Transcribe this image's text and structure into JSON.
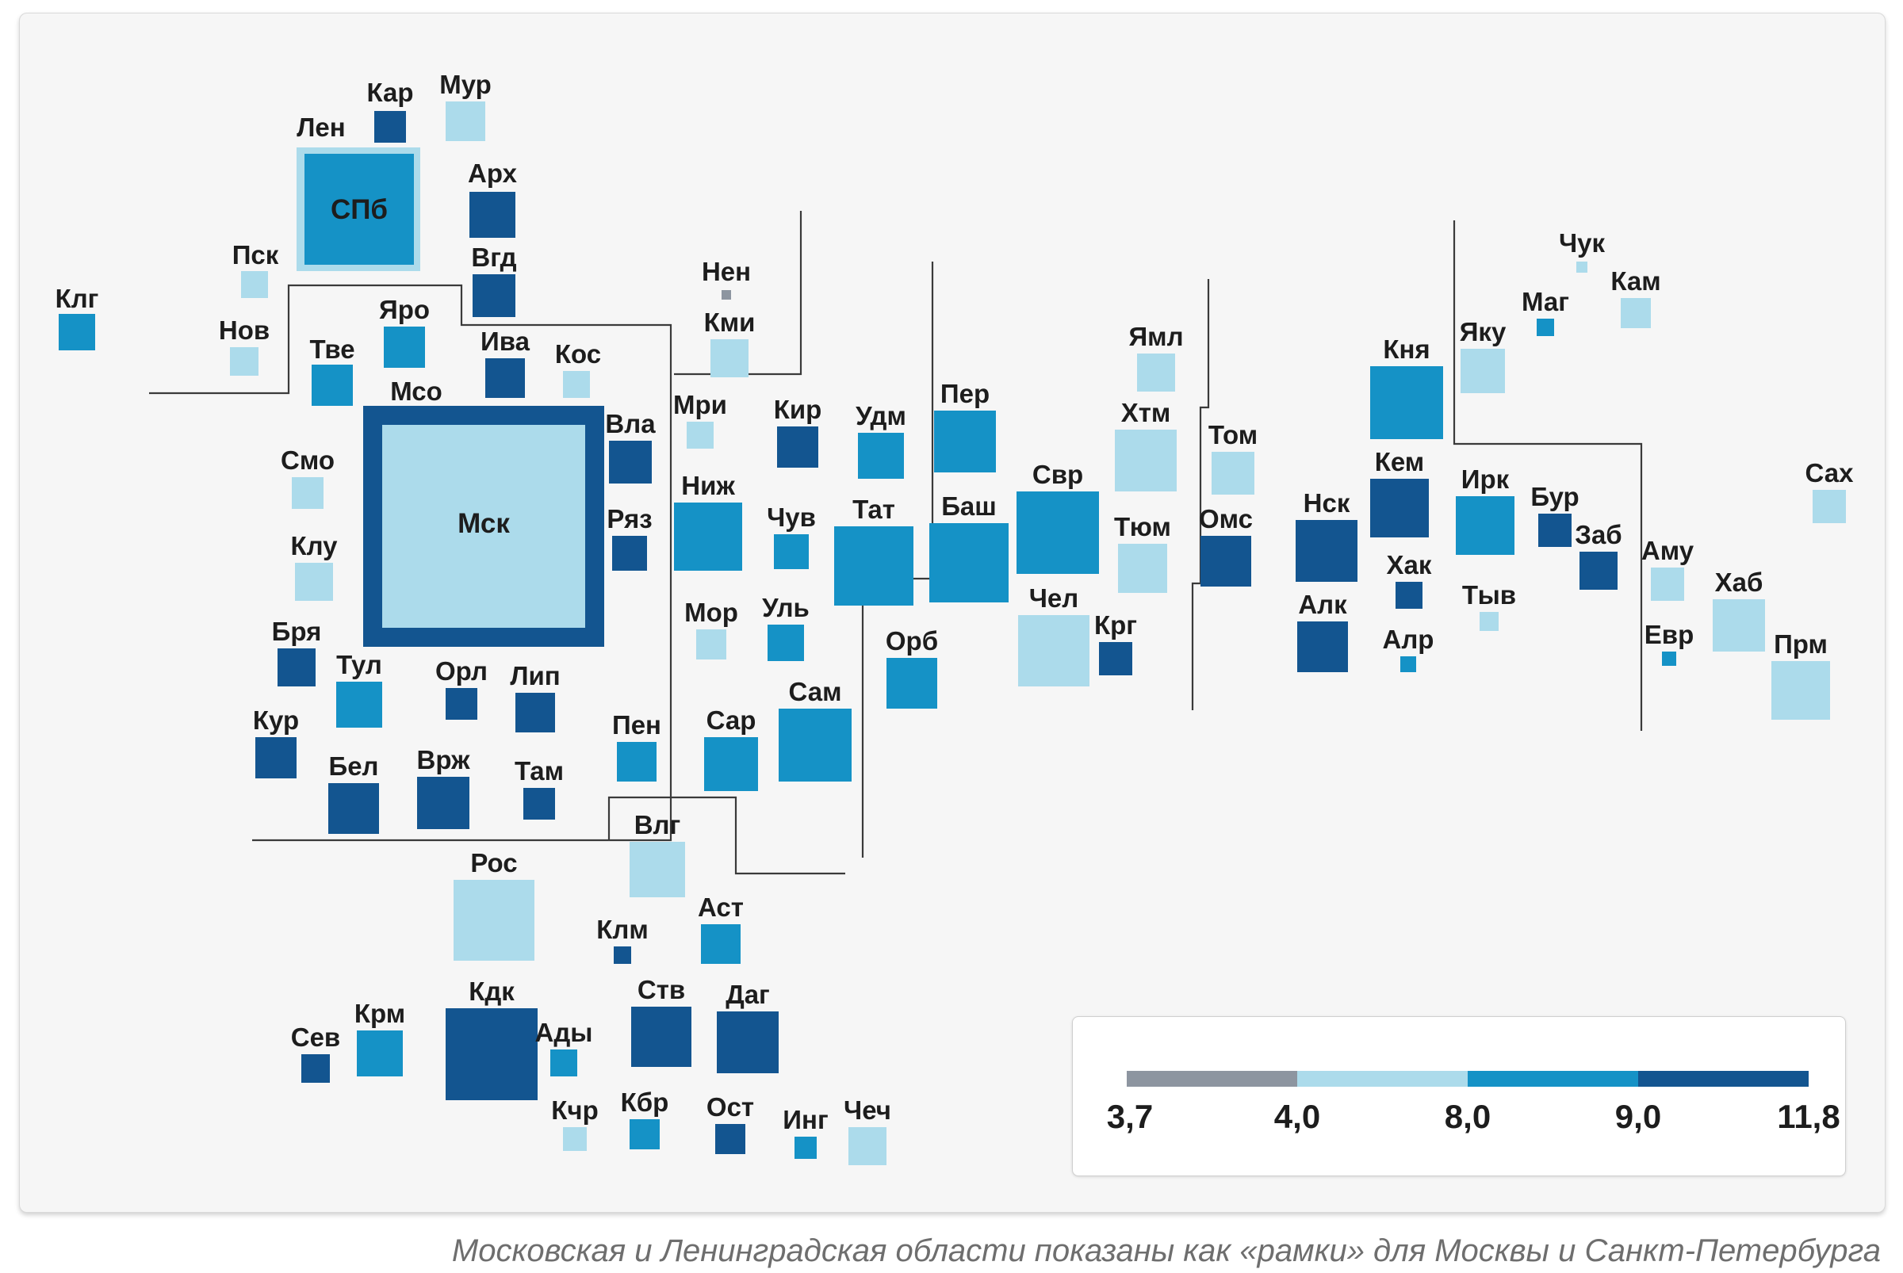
{
  "colors": {
    "c1": "#8d95a0",
    "c2": "#acdbeb",
    "c3": "#1592c6",
    "c4": "#135590",
    "dark": "#1d1d1d"
  },
  "legend": {
    "ticks": [
      "3,7",
      "4,0",
      "8,0",
      "9,0",
      "11,8"
    ],
    "bins": [
      {
        "from": 3.7,
        "to": 4.0,
        "color": "#8d95a0"
      },
      {
        "from": 4.0,
        "to": 8.0,
        "color": "#acdbeb"
      },
      {
        "from": 8.0,
        "to": 9.0,
        "color": "#1592c6"
      },
      {
        "from": 9.0,
        "to": 11.8,
        "color": "#135590"
      }
    ]
  },
  "caption": "Московская и Ленинградская области показаны как «рамки» для Москвы и Санкт-Петербурга",
  "regions": [
    {
      "code": "Кар",
      "bin": 4
    },
    {
      "code": "Мур",
      "bin": 2
    },
    {
      "code": "Лен",
      "bin": 2
    },
    {
      "code": "СПб",
      "bin": 3
    },
    {
      "code": "Арх",
      "bin": 4
    },
    {
      "code": "Вгд",
      "bin": 4
    },
    {
      "code": "Пск",
      "bin": 2
    },
    {
      "code": "Клг",
      "bin": 3
    },
    {
      "code": "Нов",
      "bin": 2
    },
    {
      "code": "Тве",
      "bin": 3
    },
    {
      "code": "Яро",
      "bin": 3
    },
    {
      "code": "Ива",
      "bin": 4
    },
    {
      "code": "Кос",
      "bin": 2
    },
    {
      "code": "Мсо",
      "bin": 4
    },
    {
      "code": "Мск",
      "bin": 2
    },
    {
      "code": "Смо",
      "bin": 2
    },
    {
      "code": "Клу",
      "bin": 2
    },
    {
      "code": "Бря",
      "bin": 4
    },
    {
      "code": "Тул",
      "bin": 3
    },
    {
      "code": "Орл",
      "bin": 4
    },
    {
      "code": "Лип",
      "bin": 4
    },
    {
      "code": "Кур",
      "bin": 4
    },
    {
      "code": "Бел",
      "bin": 4
    },
    {
      "code": "Врж",
      "bin": 4
    },
    {
      "code": "Там",
      "bin": 4
    },
    {
      "code": "Вла",
      "bin": 4
    },
    {
      "code": "Ряз",
      "bin": 4
    },
    {
      "code": "Нен",
      "bin": 1
    },
    {
      "code": "Кми",
      "bin": 2
    },
    {
      "code": "Мри",
      "bin": 2
    },
    {
      "code": "Ниж",
      "bin": 3
    },
    {
      "code": "Кир",
      "bin": 4
    },
    {
      "code": "Чув",
      "bin": 3
    },
    {
      "code": "Мор",
      "bin": 2
    },
    {
      "code": "Уль",
      "bin": 3
    },
    {
      "code": "Пен",
      "bin": 3
    },
    {
      "code": "Сар",
      "bin": 3
    },
    {
      "code": "Сам",
      "bin": 3
    },
    {
      "code": "Тат",
      "bin": 3
    },
    {
      "code": "Удм",
      "bin": 3
    },
    {
      "code": "Пер",
      "bin": 3
    },
    {
      "code": "Баш",
      "bin": 3
    },
    {
      "code": "Орб",
      "bin": 3
    },
    {
      "code": "Свр",
      "bin": 3
    },
    {
      "code": "Чел",
      "bin": 2
    },
    {
      "code": "Крг",
      "bin": 4
    },
    {
      "code": "Ямл",
      "bin": 2
    },
    {
      "code": "Хтм",
      "bin": 2
    },
    {
      "code": "Тюм",
      "bin": 2
    },
    {
      "code": "Том",
      "bin": 2
    },
    {
      "code": "Омс",
      "bin": 4
    },
    {
      "code": "Нск",
      "bin": 4
    },
    {
      "code": "Алк",
      "bin": 4
    },
    {
      "code": "Кня",
      "bin": 3
    },
    {
      "code": "Кем",
      "bin": 4
    },
    {
      "code": "Хак",
      "bin": 4
    },
    {
      "code": "Алр",
      "bin": 3
    },
    {
      "code": "Яку",
      "bin": 2
    },
    {
      "code": "Ирк",
      "bin": 3
    },
    {
      "code": "Тыв",
      "bin": 2
    },
    {
      "code": "Бур",
      "bin": 4
    },
    {
      "code": "Заб",
      "bin": 4
    },
    {
      "code": "Чук",
      "bin": 2
    },
    {
      "code": "Маг",
      "bin": 3
    },
    {
      "code": "Кам",
      "bin": 2
    },
    {
      "code": "Аму",
      "bin": 2
    },
    {
      "code": "Евр",
      "bin": 3
    },
    {
      "code": "Хаб",
      "bin": 2
    },
    {
      "code": "Прм",
      "bin": 2
    },
    {
      "code": "Сах",
      "bin": 2
    },
    {
      "code": "Рос",
      "bin": 2
    },
    {
      "code": "Влг",
      "bin": 2
    },
    {
      "code": "Клм",
      "bin": 4
    },
    {
      "code": "Аст",
      "bin": 3
    },
    {
      "code": "Кдк",
      "bin": 4
    },
    {
      "code": "Ств",
      "bin": 4
    },
    {
      "code": "Даг",
      "bin": 4
    },
    {
      "code": "Ады",
      "bin": 3
    },
    {
      "code": "Сев",
      "bin": 4
    },
    {
      "code": "Крм",
      "bin": 3
    },
    {
      "code": "Кчр",
      "bin": 2
    },
    {
      "code": "Кбр",
      "bin": 3
    },
    {
      "code": "Ост",
      "bin": 4
    },
    {
      "code": "Инг",
      "bin": 3
    },
    {
      "code": "Чеч",
      "bin": 2
    }
  ]
}
